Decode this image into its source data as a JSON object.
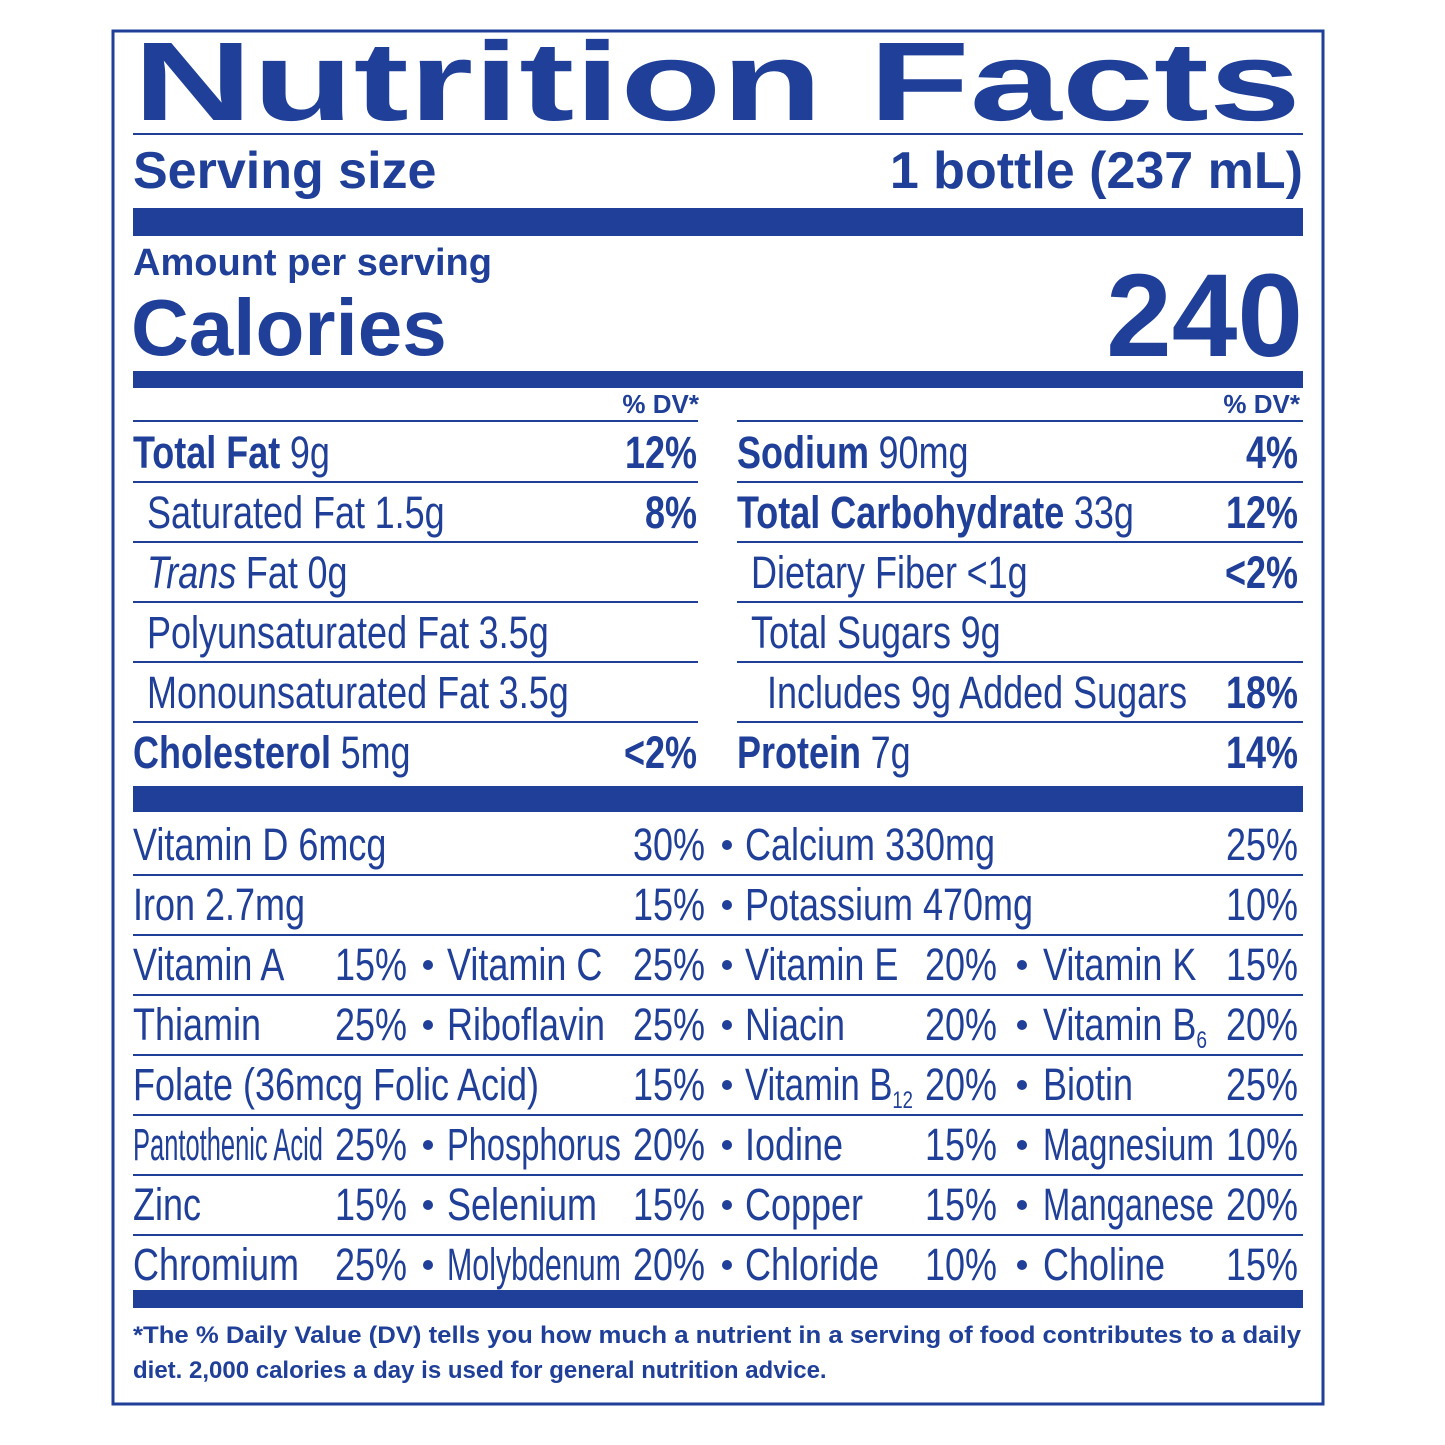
{
  "title": "Nutrition Facts",
  "serving": {
    "label": "Serving size",
    "value": "1 bottle (237 mL)"
  },
  "calories": {
    "amount_label": "Amount per serving",
    "label": "Calories",
    "value": "240"
  },
  "left_column": {
    "header": "% DV*",
    "rows": [
      {
        "name": "Total Fat",
        "amount": "9g",
        "dv": "12%",
        "level": 0
      },
      {
        "name": "Saturated Fat",
        "amount": "1.5g",
        "dv": "8%",
        "level": 1
      },
      {
        "name_italic": "Trans",
        "name": "Fat",
        "amount": "0g",
        "level": 1
      },
      {
        "name": "Polyunsaturated Fat",
        "amount": "3.5g",
        "level": 1
      },
      {
        "name": "Monounsaturated Fat",
        "amount": "3.5g",
        "level": 1
      },
      {
        "name": "Cholesterol",
        "amount": "5mg",
        "dv": "<2%",
        "level": 0
      }
    ]
  },
  "right_column": {
    "header": "% DV*",
    "rows": [
      {
        "name": "Sodium",
        "amount": "90mg",
        "dv": "4%",
        "level": 0
      },
      {
        "name": "Total Carbohydrate",
        "amount": "33g",
        "dv": "12%",
        "level": 0
      },
      {
        "name": "Dietary Fiber",
        "amount": "<1g",
        "dv": "<2%",
        "level": 1
      },
      {
        "name": "Total Sugars",
        "amount": "9g",
        "level": 1
      },
      {
        "name": "Includes 9g Added Sugars",
        "dv": "18%",
        "level": 2
      },
      {
        "name": "Protein",
        "amount": "7g",
        "dv": "14%",
        "level": 0
      }
    ]
  },
  "vitamins": {
    "rows": [
      [
        {
          "name": "Vitamin D 6mcg",
          "dv": "30%"
        },
        {
          "name": "Calcium 330mg",
          "dv": "25%"
        }
      ],
      [
        {
          "name": "Iron 2.7mg",
          "dv": "15%"
        },
        {
          "name": "Potassium 470mg",
          "dv": "10%"
        }
      ],
      [
        {
          "name": "Vitamin A",
          "dv": "15%"
        },
        {
          "name": "Vitamin C",
          "dv": "25%"
        },
        {
          "name": "Vitamin E",
          "dv": "20%"
        },
        {
          "name": "Vitamin K",
          "dv": "15%"
        }
      ],
      [
        {
          "name": "Thiamin",
          "dv": "25%"
        },
        {
          "name": "Riboflavin",
          "dv": "25%"
        },
        {
          "name": "Niacin",
          "dv": "20%"
        },
        {
          "name": "Vitamin B",
          "sub": "6",
          "dv": "20%"
        }
      ],
      [
        {
          "name": "Folate (36mcg Folic Acid)",
          "dv": "15%"
        },
        {
          "name": "Vitamin B",
          "sub": "12",
          "dv": "20%"
        },
        {
          "name": "Biotin",
          "dv": "25%"
        }
      ],
      [
        {
          "name": "Pantothenic Acid",
          "dv": "25%"
        },
        {
          "name": "Phosphorus",
          "dv": "20%"
        },
        {
          "name": "Iodine",
          "dv": "15%"
        },
        {
          "name": "Magnesium",
          "dv": "10%"
        }
      ],
      [
        {
          "name": "Zinc",
          "dv": "15%"
        },
        {
          "name": "Selenium",
          "dv": "15%"
        },
        {
          "name": "Copper",
          "dv": "15%"
        },
        {
          "name": "Manganese",
          "dv": "20%"
        }
      ],
      [
        {
          "name": "Chromium",
          "dv": "25%"
        },
        {
          "name": "Molybdenum",
          "dv": "20%"
        },
        {
          "name": "Chloride",
          "dv": "10%"
        },
        {
          "name": "Choline",
          "dv": "15%"
        }
      ]
    ]
  },
  "footnote": {
    "lines": [
      "*The % Daily Value (DV) tells you how much a nutrient in a serving of food contributes to a daily",
      "diet. 2,000 calories a day is used for general nutrition advice."
    ]
  }
}
